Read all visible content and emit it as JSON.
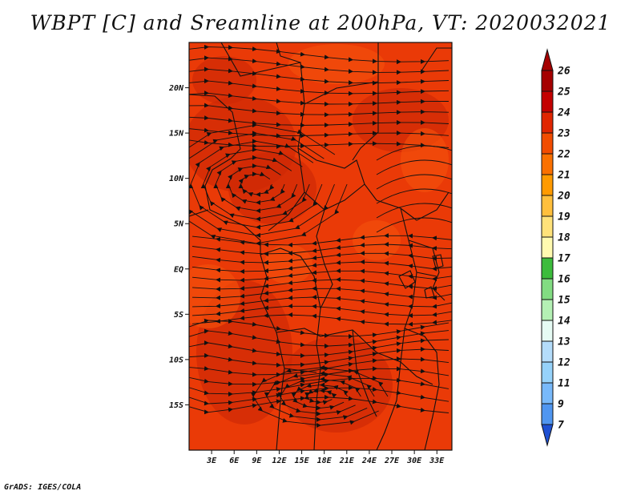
{
  "title": "WBPT [C] and Sreamline at 200hPa, VT: 2020032021",
  "credit": "GrADS: IGES/COLA",
  "map": {
    "lon_range": [
      0,
      35
    ],
    "lat_range": [
      -20,
      25
    ],
    "y_ticks": [
      {
        "lat": 20,
        "label": "20N"
      },
      {
        "lat": 15,
        "label": "15N"
      },
      {
        "lat": 10,
        "label": "10N"
      },
      {
        "lat": 5,
        "label": "5N"
      },
      {
        "lat": 0,
        "label": "EQ"
      },
      {
        "lat": -5,
        "label": "5S"
      },
      {
        "lat": -10,
        "label": "10S"
      },
      {
        "lat": -15,
        "label": "15S"
      }
    ],
    "x_ticks": [
      {
        "lon": 3,
        "label": "3E"
      },
      {
        "lon": 6,
        "label": "6E"
      },
      {
        "lon": 9,
        "label": "9E"
      },
      {
        "lon": 12,
        "label": "12E"
      },
      {
        "lon": 15,
        "label": "15E"
      },
      {
        "lon": 18,
        "label": "18E"
      },
      {
        "lon": 21,
        "label": "21E"
      },
      {
        "lon": 24,
        "label": "24E"
      },
      {
        "lon": 27,
        "label": "27E"
      },
      {
        "lon": 30,
        "label": "30E"
      },
      {
        "lon": 33,
        "label": "33E"
      }
    ],
    "field_colors": {
      "base": "#ea3a07",
      "dark": "#cf2a05",
      "light": "#f24f0c"
    }
  },
  "colorbar": {
    "levels": [
      {
        "label": "26",
        "color": "#a50000"
      },
      {
        "label": "25",
        "color": "#c30000"
      },
      {
        "label": "24",
        "color": "#e02500"
      },
      {
        "label": "23",
        "color": "#f24c00"
      },
      {
        "label": "22",
        "color": "#fa7000"
      },
      {
        "label": "21",
        "color": "#ff9a00"
      },
      {
        "label": "20",
        "color": "#ffbf3c"
      },
      {
        "label": "19",
        "color": "#ffe27a"
      },
      {
        "label": "18",
        "color": "#fffab0"
      },
      {
        "label": "17",
        "color": "#3cbc3c"
      },
      {
        "label": "16",
        "color": "#82dc82"
      },
      {
        "label": "15",
        "color": "#b4f0b4"
      },
      {
        "label": "14",
        "color": "#e6fbf4"
      },
      {
        "label": "13",
        "color": "#b4dcfa"
      },
      {
        "label": "12",
        "color": "#96d2fa"
      },
      {
        "label": "11",
        "color": "#78b9fa"
      },
      {
        "label": "9",
        "color": "#5096f0"
      },
      {
        "label": "7",
        "color": "#2864dc"
      }
    ],
    "bottom_color": "#1e50d2"
  }
}
